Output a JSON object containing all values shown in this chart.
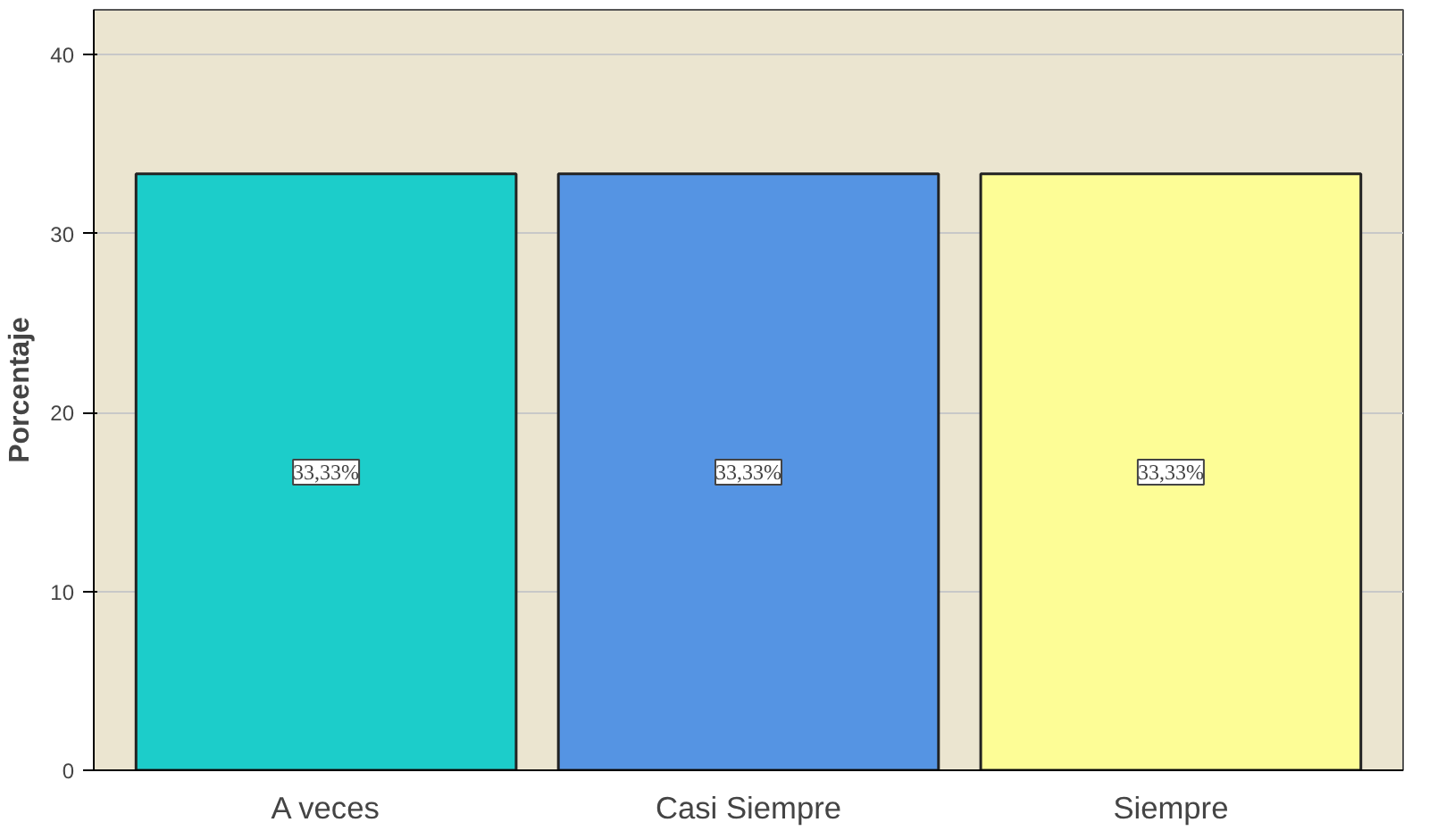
{
  "chart_data": {
    "type": "bar",
    "ylabel": "Porcentaje",
    "categories": [
      "A veces",
      "Casi Siempre",
      "Siempre"
    ],
    "values": [
      33.33,
      33.33,
      33.33
    ],
    "colors": [
      "#1ccdca",
      "#5594e3",
      "#fdfd96"
    ],
    "value_labels": [
      "33,33%",
      "33,33%",
      "33,33%"
    ],
    "ylim": [
      0,
      42.5
    ],
    "yticks": [
      0,
      10,
      20,
      30,
      40
    ],
    "grid": "y"
  }
}
